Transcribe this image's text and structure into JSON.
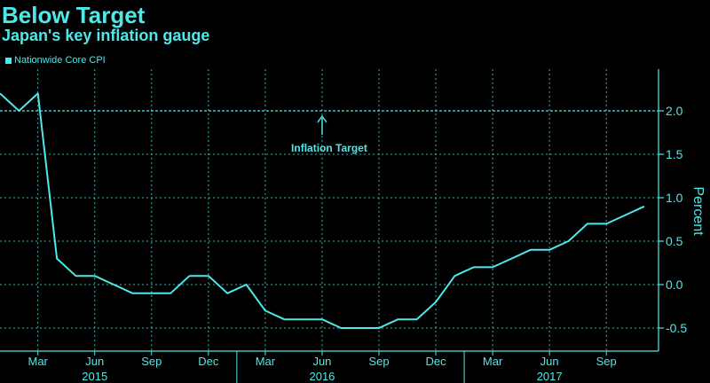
{
  "chart_data": {
    "type": "line",
    "title": "Below Target",
    "subtitle": "Japan's key inflation gauge",
    "ylabel": "Percent",
    "ylim": [
      -0.7,
      2.4
    ],
    "yticks": [
      2.0,
      1.5,
      1.0,
      0.5,
      0.0,
      -0.5
    ],
    "ytick_labels": [
      "2.0",
      "1.5",
      "1.0",
      "0.5",
      "0.0",
      "-0.5"
    ],
    "grid": true,
    "legend_position": "top-left",
    "x_tick_labels": [
      "Mar",
      "Jun",
      "Sep",
      "Dec",
      "Mar",
      "Jun",
      "Sep",
      "Dec",
      "Mar",
      "Jun",
      "Sep"
    ],
    "x_tick_months": [
      2,
      5,
      8,
      11,
      14,
      17,
      20,
      23,
      26,
      29,
      32
    ],
    "year_labels": [
      {
        "label": "2015",
        "month": 5
      },
      {
        "label": "2016",
        "month": 17
      },
      {
        "label": "2017",
        "month": 29
      }
    ],
    "reference_line": {
      "value": 2.0,
      "label": "Inflation Target"
    },
    "series": [
      {
        "name": "Nationwide Core CPI",
        "color": "#4ee8e8",
        "x": [
          "2014-12",
          "2015-01",
          "2015-02",
          "2015-03",
          "2015-04",
          "2015-05",
          "2015-06",
          "2015-07",
          "2015-08",
          "2015-09",
          "2015-10",
          "2015-11",
          "2015-12",
          "2016-01",
          "2016-02",
          "2016-03",
          "2016-04",
          "2016-05",
          "2016-06",
          "2016-07",
          "2016-08",
          "2016-09",
          "2016-10",
          "2016-11",
          "2016-12",
          "2017-01",
          "2017-02",
          "2017-03",
          "2017-04",
          "2017-05",
          "2017-06",
          "2017-07",
          "2017-08",
          "2017-09",
          "2017-10"
        ],
        "values": [
          2.2,
          2.0,
          2.2,
          0.3,
          0.1,
          0.1,
          0.0,
          -0.1,
          -0.1,
          -0.1,
          0.1,
          0.1,
          -0.1,
          0.0,
          -0.3,
          -0.4,
          -0.4,
          -0.4,
          -0.5,
          -0.5,
          -0.5,
          -0.4,
          -0.4,
          -0.2,
          0.1,
          0.2,
          0.2,
          0.3,
          0.4,
          0.4,
          0.5,
          0.7,
          0.7,
          0.8,
          0.9
        ]
      }
    ]
  }
}
